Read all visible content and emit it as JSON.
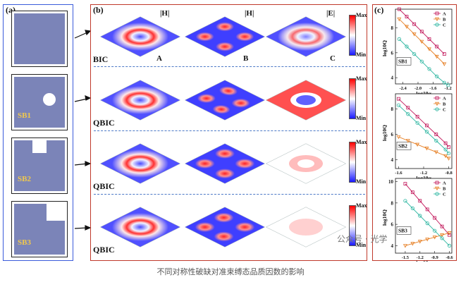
{
  "figure": {
    "caption": "不同对称性破缺对准束缚态品质因数的影响",
    "watermark": "公众号 · 光学",
    "panel_a": {
      "label": "(a)",
      "units": [
        {
          "name": "BIC",
          "label": ""
        },
        {
          "name": "SB1",
          "label": "SB1"
        },
        {
          "name": "SB2",
          "label": "SB2"
        },
        {
          "name": "SB3",
          "label": "SB3"
        }
      ]
    },
    "panel_b": {
      "label": "(b)",
      "columns": [
        {
          "header": "|H|",
          "mode": "A"
        },
        {
          "header": "|H|",
          "mode": "B"
        },
        {
          "header": "|E|",
          "mode": "C"
        }
      ],
      "rows": [
        "BIC",
        "QBIC",
        "QBIC",
        "QBIC"
      ],
      "colorbar": {
        "max": "Max",
        "min": "Min"
      }
    },
    "panel_c": {
      "label": "(c)",
      "ylabel": "log10Q",
      "xlabel": "log10α",
      "series_names": [
        "A",
        "B",
        "C"
      ],
      "colors": {
        "A": "#c2185b",
        "B": "#e67e22",
        "C": "#2bb5a0"
      }
    }
  },
  "chart_data": [
    {
      "type": "scatter",
      "name": "SB1",
      "xlabel": "log10α",
      "ylabel": "log10Q",
      "xlim": [
        -2.6,
        -1.1
      ],
      "ylim": [
        3.5,
        9.5
      ],
      "xticks": [
        -2.4,
        -2.0,
        -1.6,
        -1.2
      ],
      "yticks": [
        4,
        6,
        8
      ],
      "series": [
        {
          "name": "A",
          "marker": "square",
          "x": [
            -2.5,
            -2.3,
            -2.1,
            -1.9,
            -1.7,
            -1.5,
            -1.3
          ],
          "y": [
            9.5,
            8.9,
            8.3,
            7.7,
            7.1,
            6.5,
            5.9
          ]
        },
        {
          "name": "B",
          "marker": "triangle",
          "x": [
            -2.5,
            -2.3,
            -2.1,
            -1.9,
            -1.7,
            -1.5,
            -1.3
          ],
          "y": [
            8.7,
            8.1,
            7.5,
            6.9,
            6.3,
            5.7,
            5.1
          ]
        },
        {
          "name": "C",
          "marker": "circle",
          "x": [
            -2.5,
            -2.3,
            -2.1,
            -1.9,
            -1.7,
            -1.5,
            -1.3,
            -1.2
          ],
          "y": [
            7.1,
            6.5,
            5.9,
            5.3,
            4.7,
            4.1,
            3.6,
            3.4
          ]
        }
      ]
    },
    {
      "type": "scatter",
      "name": "SB2",
      "xlabel": "log10α",
      "ylabel": "log10Q",
      "xlim": [
        -1.65,
        -0.75
      ],
      "ylim": [
        3.3,
        9.2
      ],
      "xticks": [
        -1.6,
        -1.2,
        -0.8
      ],
      "yticks": [
        4,
        6,
        8
      ],
      "series": [
        {
          "name": "A",
          "marker": "square",
          "x": [
            -1.6,
            -1.45,
            -1.3,
            -1.15,
            -1.0,
            -0.85,
            -0.8
          ],
          "y": [
            8.8,
            8.1,
            7.4,
            6.7,
            6.0,
            5.3,
            5.0
          ]
        },
        {
          "name": "B",
          "marker": "triangle",
          "x": [
            -1.6,
            -1.45,
            -1.3,
            -1.15,
            -1.0,
            -0.85,
            -0.8
          ],
          "y": [
            5.8,
            5.5,
            5.2,
            4.9,
            4.6,
            4.3,
            4.1
          ]
        },
        {
          "name": "C",
          "marker": "circle",
          "x": [
            -1.6,
            -1.45,
            -1.3,
            -1.15,
            -1.0,
            -0.85,
            -0.8
          ],
          "y": [
            8.3,
            7.6,
            6.9,
            6.2,
            5.5,
            4.8,
            4.5
          ]
        }
      ]
    },
    {
      "type": "scatter",
      "name": "SB3",
      "xlabel": "log10α",
      "ylabel": "log10Q",
      "xlim": [
        -1.7,
        -0.55
      ],
      "ylim": [
        3.3,
        10.3
      ],
      "xticks": [
        -1.5,
        -1.2,
        -0.9,
        -0.6
      ],
      "yticks": [
        4,
        6,
        8,
        10
      ],
      "series": [
        {
          "name": "A",
          "marker": "square",
          "x": [
            -1.5,
            -1.35,
            -1.2,
            -1.05,
            -0.9,
            -0.75,
            -0.6
          ],
          "y": [
            9.8,
            9.0,
            8.2,
            7.4,
            6.6,
            5.8,
            5.0
          ]
        },
        {
          "name": "B",
          "marker": "triangle",
          "x": [
            -1.5,
            -1.35,
            -1.2,
            -1.05,
            -0.9,
            -0.75,
            -0.6
          ],
          "y": [
            4.0,
            4.2,
            4.4,
            4.6,
            4.8,
            5.0,
            5.2
          ]
        },
        {
          "name": "C",
          "marker": "circle",
          "x": [
            -1.5,
            -1.35,
            -1.2,
            -1.05,
            -0.9,
            -0.75,
            -0.6
          ],
          "y": [
            8.2,
            7.5,
            6.8,
            6.1,
            5.4,
            4.7,
            4.0
          ]
        }
      ]
    }
  ]
}
